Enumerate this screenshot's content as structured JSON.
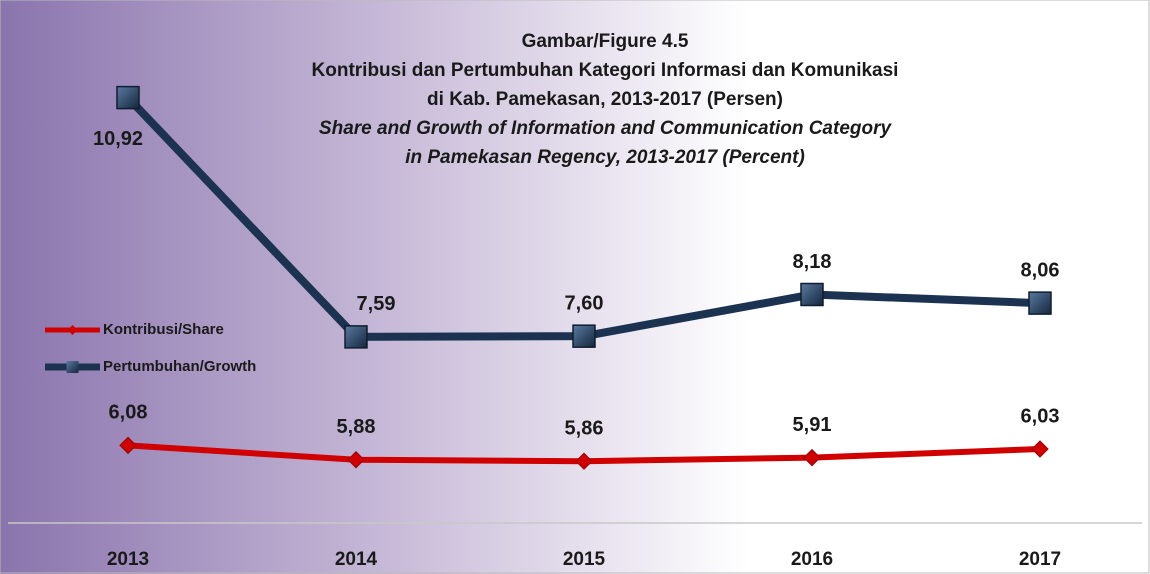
{
  "chart_data": {
    "type": "line",
    "title": [
      "Gambar/Figure 4.5",
      "Kontribusi dan Pertumbuhan Kategori Informasi dan Komunikasi",
      "di Kab. Pamekasan, 2013-2017 (Persen)",
      "Share and Growth of Information and Communication Category",
      "in Pamekasan Regency, 2013-2017 (Percent)"
    ],
    "categories": [
      "2013",
      "2014",
      "2015",
      "2016",
      "2017"
    ],
    "series": [
      {
        "name": "Kontribusi/Share",
        "color": "#d00000",
        "values": [
          6.08,
          5.88,
          5.86,
          5.91,
          6.03
        ],
        "value_labels": [
          "6,08",
          "5,88",
          "5,86",
          "5,91",
          "6,03"
        ]
      },
      {
        "name": "Pertumbuhan/Growth",
        "color": "#1b3350",
        "values": [
          10.92,
          7.59,
          7.6,
          8.18,
          8.06
        ],
        "value_labels": [
          "10,92",
          "7,59",
          "7,60",
          "8,18",
          "8,06"
        ]
      }
    ],
    "ylim": [
      5,
      12
    ],
    "legend": "left"
  }
}
